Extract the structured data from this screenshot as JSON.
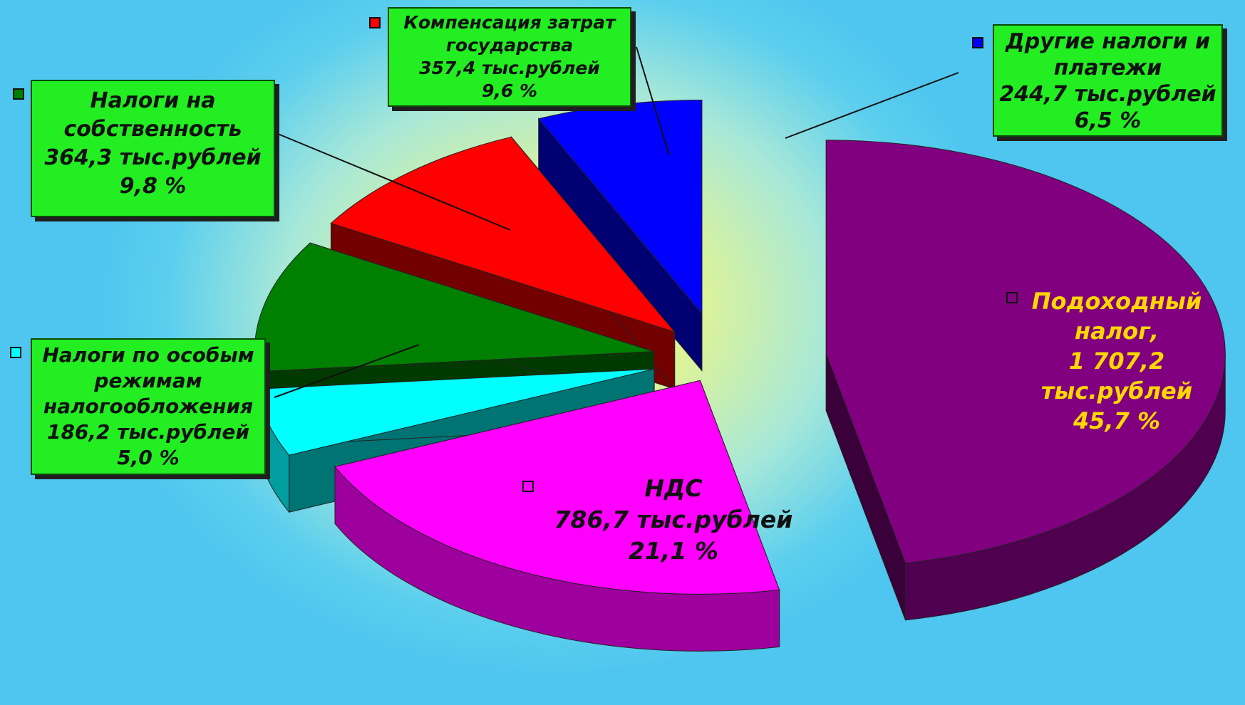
{
  "chart_data": {
    "type": "pie",
    "slices": [
      {
        "label": "Подоходный налог,",
        "value_text": "1 707,2 тыс.рублей",
        "value": 1707.2,
        "percent": 45.7,
        "percent_text": "45,7 %",
        "color": "#800080"
      },
      {
        "label": "НДС",
        "value_text": "786,7 тыс.рублей",
        "value": 786.7,
        "percent": 21.1,
        "percent_text": "21,1 %",
        "color": "#ff00ff"
      },
      {
        "label": "Налоги по особым режимам налогообложения",
        "value_text": "186,2 тыс.рублей",
        "value": 186.2,
        "percent": 5.0,
        "percent_text": "5,0 %",
        "color": "#00ffff"
      },
      {
        "label": "Налоги на собственность",
        "value_text": "364,3 тыс.рублей",
        "value": 364.3,
        "percent": 9.8,
        "percent_text": "9,8 %",
        "color": "#008000"
      },
      {
        "label": "Компенсация затрат государства",
        "value_text": "357,4 тыс.рублей",
        "value": 357.4,
        "percent": 9.6,
        "percent_text": "9,6 %",
        "color": "#ff0000"
      },
      {
        "label": "Другие налоги и платежи",
        "value_text": "244,7 тыс.рублей",
        "value": 244.7,
        "percent": 6.5,
        "percent_text": "6,5 %",
        "color": "#0000ff"
      }
    ]
  },
  "labels": {
    "income": {
      "l1": "Подоходный",
      "l2": "налог,",
      "l3": "1 707,2",
      "l4": "тыс.рублей",
      "l5": "45,7 %"
    },
    "vat": {
      "l1": "НДС",
      "l2": "786,7 тыс.рублей",
      "l3": "21,1 %"
    },
    "special": {
      "l1": "Налоги по особым",
      "l2": "режимам",
      "l3": "налогообложения",
      "l4": "186,2 тыс.рублей",
      "l5": "5,0 %"
    },
    "property": {
      "l1": "Налоги на",
      "l2": "собственность",
      "l3": "364,3 тыс.рублей",
      "l4": "9,8 %"
    },
    "comp": {
      "l1": "Компенсация затрат",
      "l2": "государства",
      "l3": "357,4 тыс.рублей",
      "l4": "9,6 %"
    },
    "other": {
      "l1": "Другие налоги и",
      "l2": "платежи",
      "l3": "244,7 тыс.рублей",
      "l4": "6,5 %"
    }
  }
}
